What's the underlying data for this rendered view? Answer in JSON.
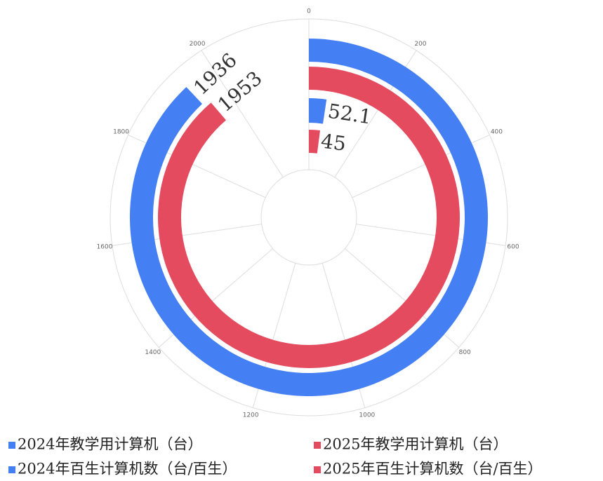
{
  "chart_data": {
    "type": "radial_bar",
    "series": [
      {
        "name": "2024年教学用计算机（台）",
        "color": "#4480f3",
        "values": [
          1936
        ]
      },
      {
        "name": "2025年教学用计算机（台）",
        "color": "#e44b5f",
        "values": [
          1953
        ]
      },
      {
        "name": "2024年百生计算机数（台/百生）",
        "color": "#4480f3",
        "values": [
          52.1
        ]
      },
      {
        "name": "2025年百生计算机数（台/百生）",
        "color": "#e44b5f",
        "values": [
          45
        ]
      }
    ],
    "xlim": [
      0,
      2200
    ],
    "xticks": [
      0,
      200,
      400,
      600,
      800,
      1000,
      1200,
      1400,
      1600,
      1800,
      2000
    ],
    "grid": true
  }
}
